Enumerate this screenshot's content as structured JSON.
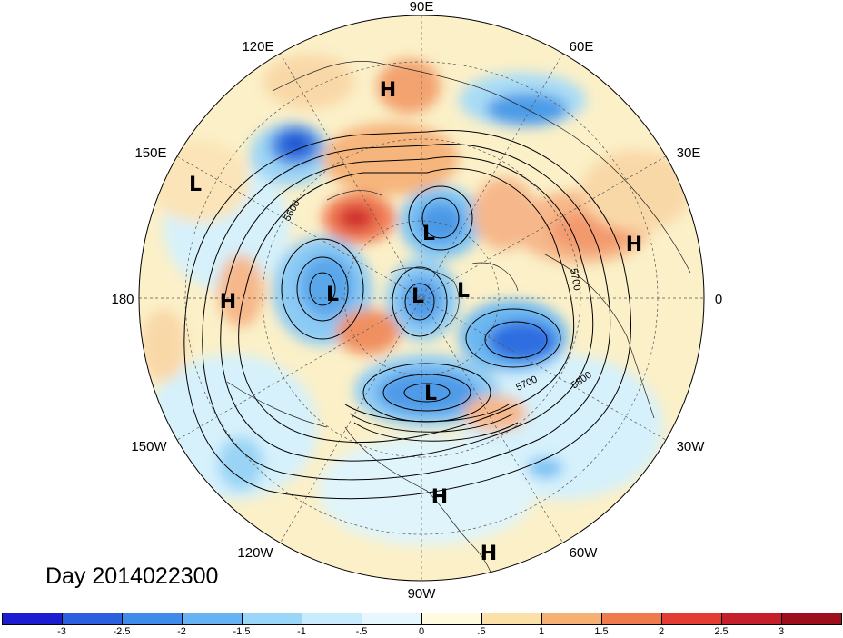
{
  "map": {
    "longitude_labels": [
      "90E",
      "60E",
      "30E",
      "0",
      "30W",
      "60W",
      "90W",
      "120W",
      "150W",
      "180",
      "150E",
      "120E"
    ],
    "contour_labels": [
      "5600",
      "5700",
      "5800",
      "5700"
    ],
    "centers": [
      {
        "type": "H",
        "name": "high-siberia"
      },
      {
        "type": "L",
        "name": "low-west-pacific"
      },
      {
        "type": "L",
        "name": "low-arctic-north"
      },
      {
        "type": "H",
        "name": "high-europe"
      },
      {
        "type": "H",
        "name": "high-dateline"
      },
      {
        "type": "L",
        "name": "low-alaska"
      },
      {
        "type": "L",
        "name": "low-pole"
      },
      {
        "type": "L",
        "name": "low-greenland"
      },
      {
        "type": "L",
        "name": "low-hudson"
      },
      {
        "type": "H",
        "name": "high-gulf"
      },
      {
        "type": "H",
        "name": "high-caribbean"
      }
    ]
  },
  "caption": "Day 2014022300",
  "colorbar": {
    "ticks": [
      "-3",
      "-2.5",
      "-2",
      "-1.5",
      "-1",
      "-.5",
      "0",
      ".5",
      "1",
      "1.5",
      "2",
      "2.5",
      "3"
    ],
    "colors": [
      "#1c1cd0",
      "#2a5fe0",
      "#3f8bea",
      "#66b2f2",
      "#99d6f8",
      "#c8ecfb",
      "#e6f7fd",
      "#fffbe0",
      "#fbe0a8",
      "#f5b074",
      "#ee7a4e",
      "#e33c32",
      "#c41f2a",
      "#9e0f1e"
    ]
  }
}
